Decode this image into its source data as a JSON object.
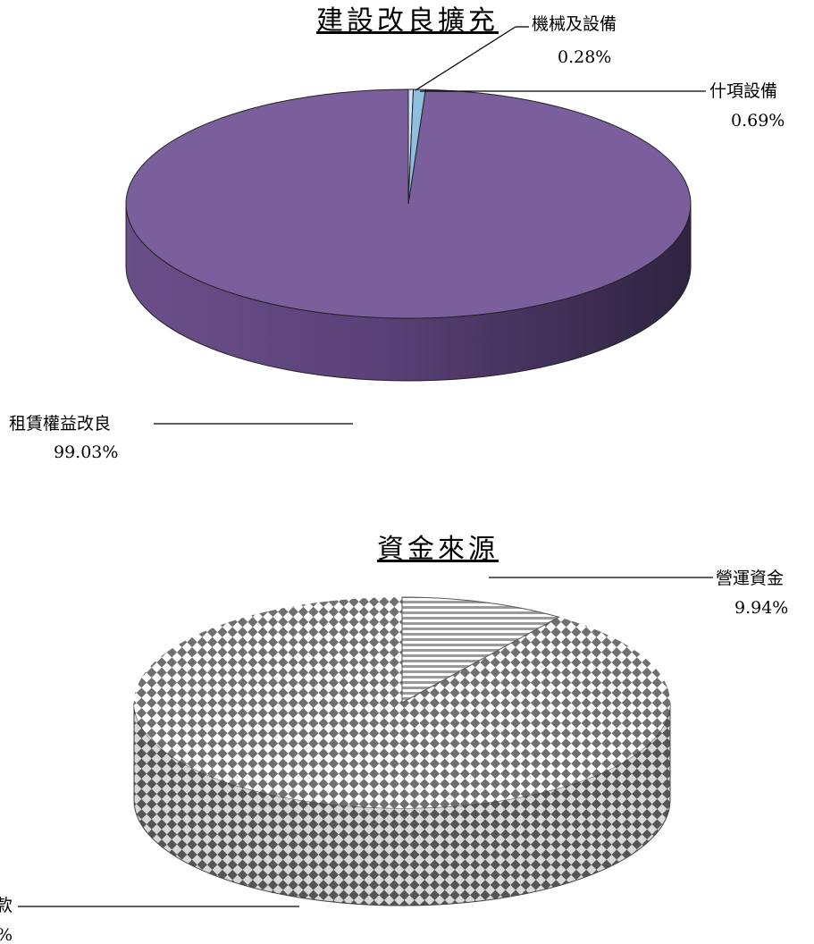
{
  "chart_data": [
    {
      "type": "pie",
      "title": "建設改良擴充",
      "categories": [
        "租賃權益改良",
        "機械及設備",
        "什項設備"
      ],
      "values": [
        99.03,
        0.28,
        0.69
      ],
      "value_labels": [
        "99.03%",
        "0.28%",
        "0.69%"
      ],
      "colors": [
        "#7b5e9c",
        "#cfe6f7",
        "#8fbedf"
      ],
      "style": "3d"
    },
    {
      "type": "pie",
      "title": "資金來源",
      "categories": [
        "",
        "營運資金"
      ],
      "values": [
        90.06,
        9.94
      ],
      "value_labels": [
        "",
        "9.94%"
      ],
      "patterns": [
        "checker",
        "horizontal-stripes"
      ],
      "partial_visible_text": {
        "label": "款",
        "value": "%"
      },
      "style": "3d"
    }
  ]
}
